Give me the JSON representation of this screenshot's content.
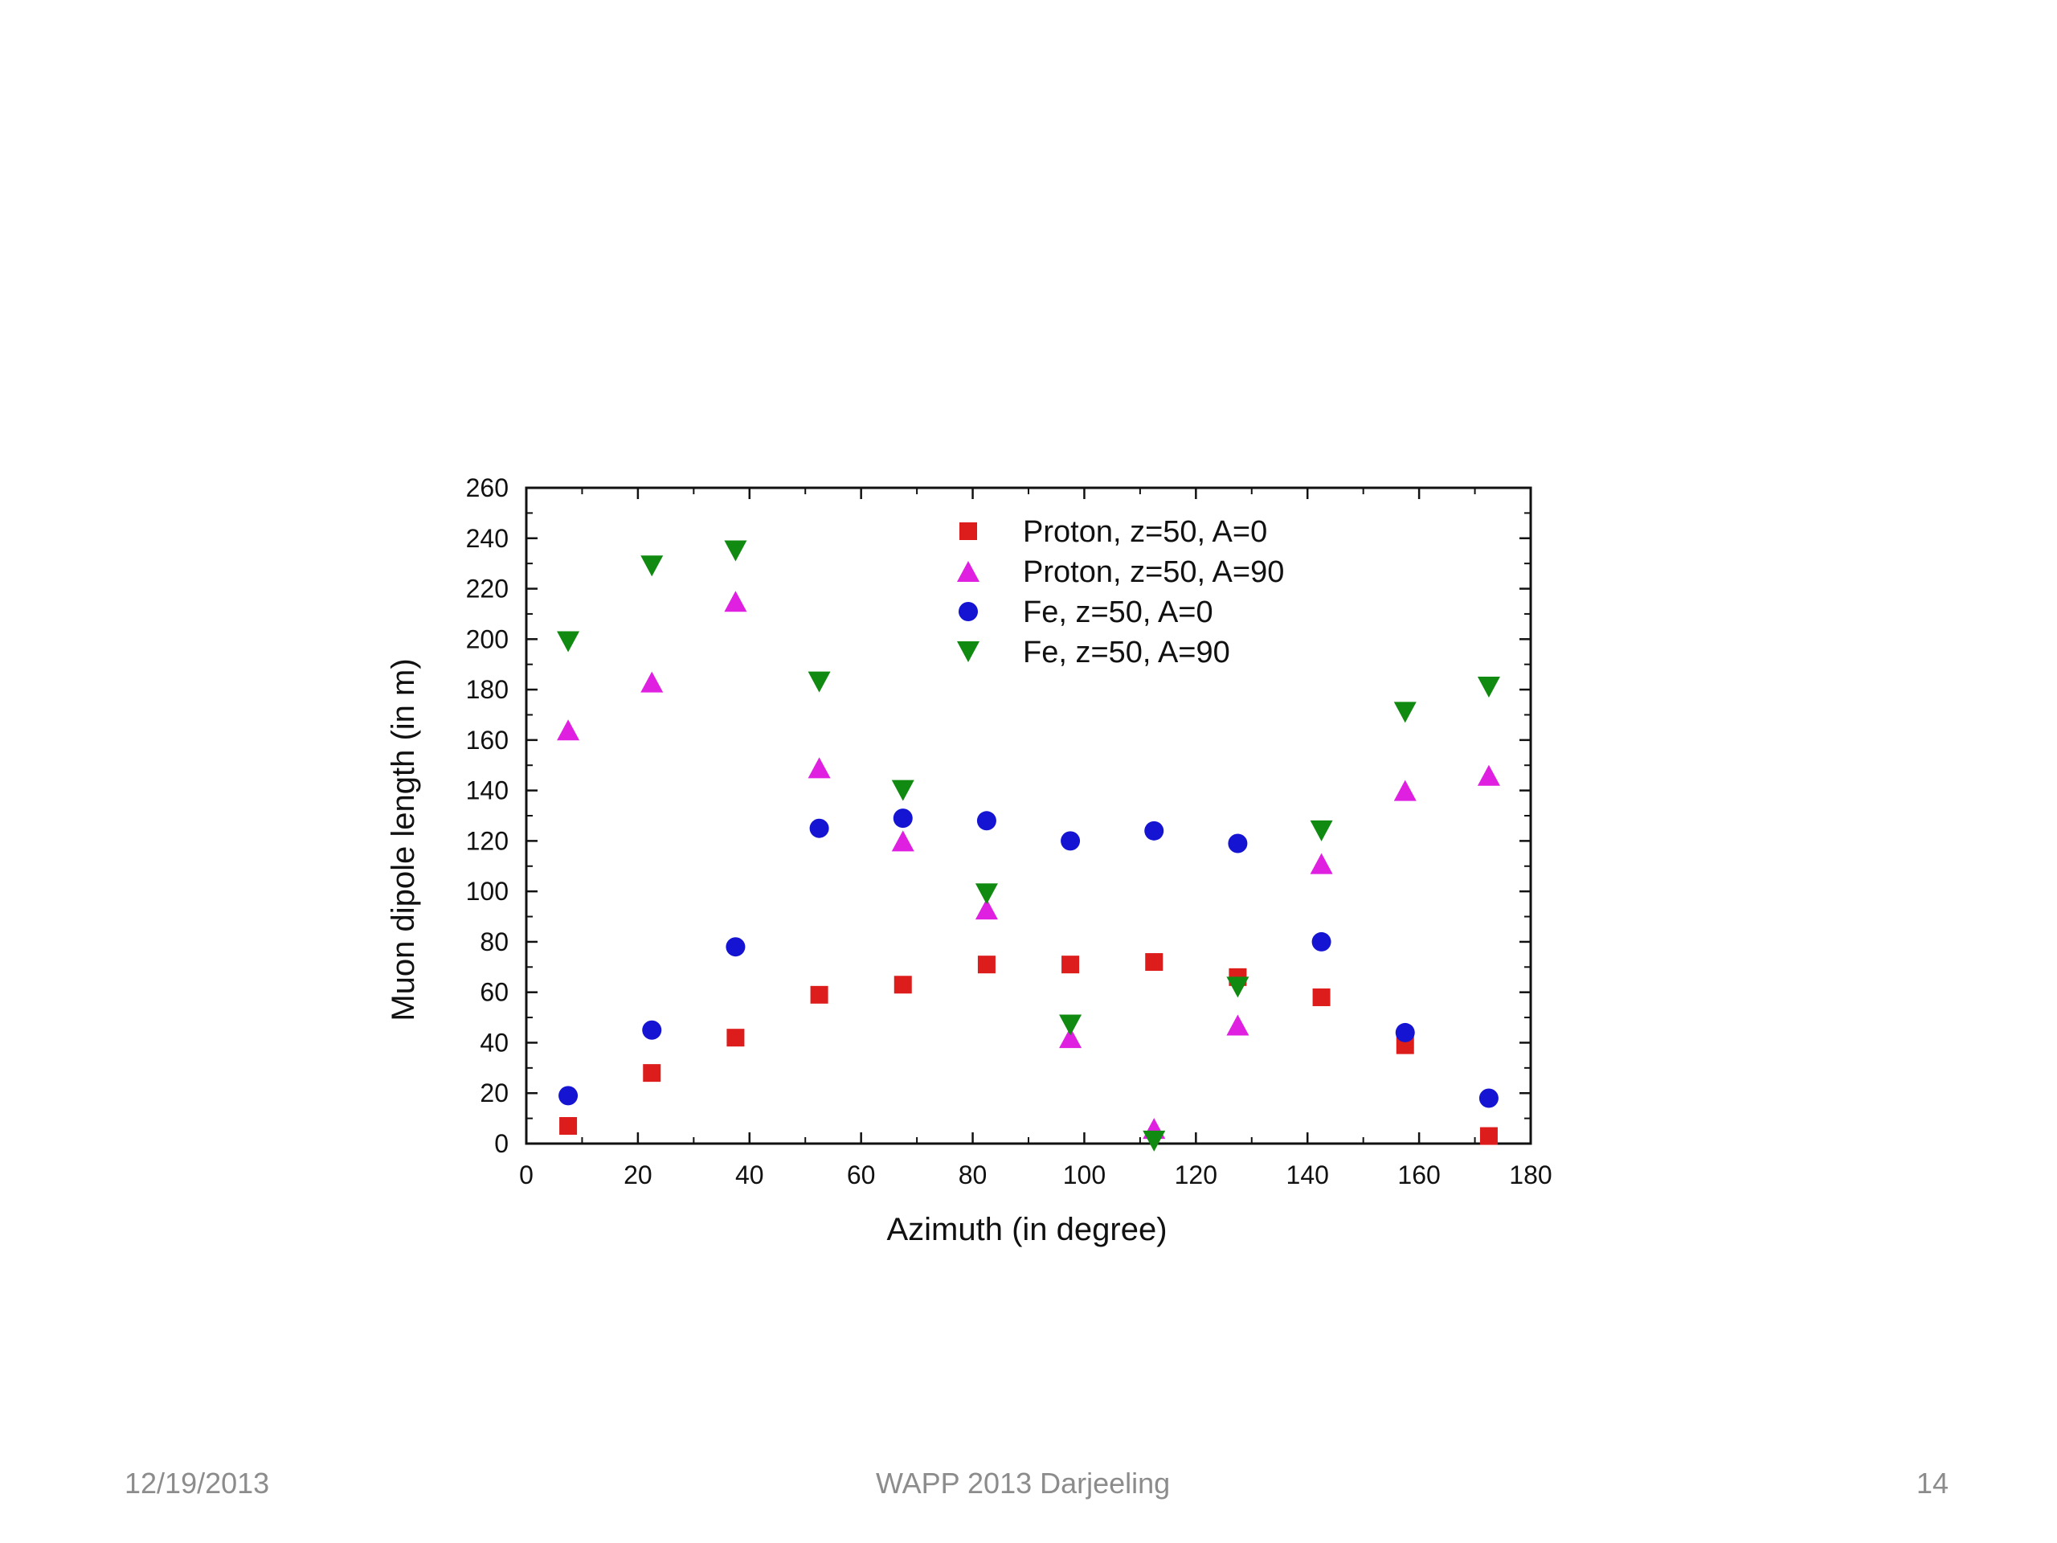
{
  "footer": {
    "date": "12/19/2013",
    "event": "WAPP 2013  Darjeeling",
    "page": "14"
  },
  "chart_data": {
    "type": "scatter",
    "title": "",
    "xlabel": "Azimuth (in degree)",
    "ylabel": "Muon dipole length (in m)",
    "xlim": [
      0,
      180
    ],
    "ylim": [
      0,
      260
    ],
    "xticks": [
      0,
      20,
      40,
      60,
      80,
      100,
      120,
      140,
      160,
      180
    ],
    "yticks": [
      0,
      20,
      40,
      60,
      80,
      100,
      120,
      140,
      160,
      180,
      200,
      220,
      240,
      260
    ],
    "grid": false,
    "legend_position": "top-right",
    "x": [
      7.5,
      22.5,
      37.5,
      52.5,
      67.5,
      82.5,
      97.5,
      112.5,
      127.5,
      142.5,
      157.5,
      172.5
    ],
    "series": [
      {
        "name": "Proton, z=50, A=0",
        "marker": "square",
        "color": "#dd1c1c",
        "values": [
          7,
          28,
          42,
          59,
          63,
          71,
          71,
          72,
          66,
          58,
          39,
          3
        ]
      },
      {
        "name": "Proton, z=50, A=90",
        "marker": "triangle-up",
        "color": "#e020e0",
        "values": [
          164,
          183,
          215,
          149,
          120,
          93,
          42,
          6,
          47,
          111,
          140,
          146
        ]
      },
      {
        "name": "Fe, z=50, A=0",
        "marker": "circle",
        "color": "#1414d2",
        "values": [
          19,
          45,
          78,
          125,
          129,
          128,
          120,
          124,
          119,
          80,
          44,
          18
        ]
      },
      {
        "name": "Fe, z=50, A=90",
        "marker": "triangle-down",
        "color": "#108a10",
        "values": [
          199,
          229,
          235,
          183,
          140,
          99,
          47,
          1,
          62,
          124,
          171,
          181
        ]
      }
    ]
  }
}
